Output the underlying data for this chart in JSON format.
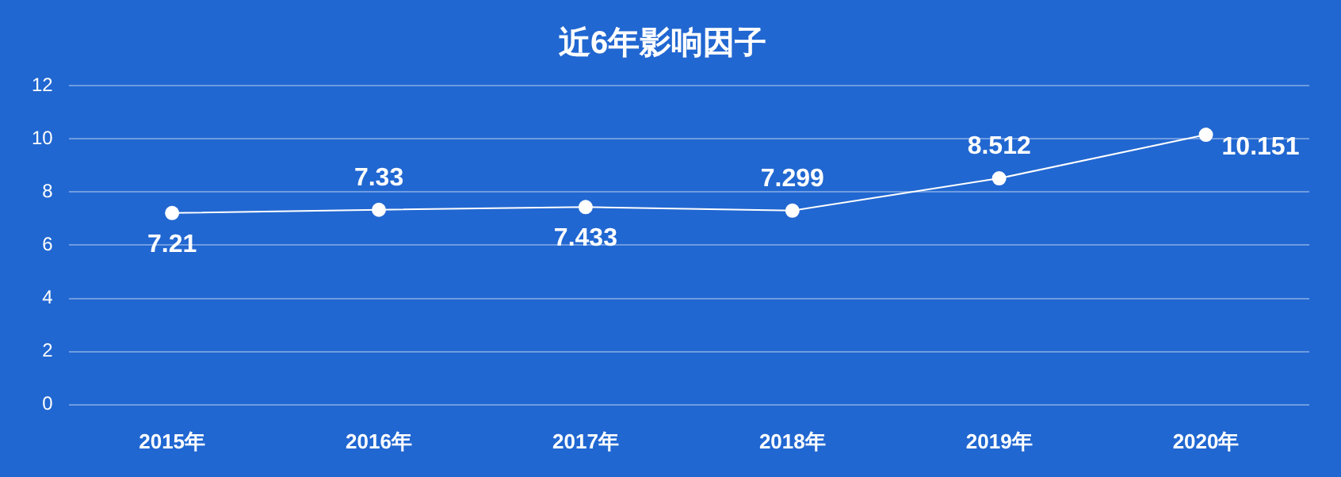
{
  "chart_data": {
    "type": "line",
    "title": "近6年影响因子",
    "categories": [
      "2015年",
      "2016年",
      "2017年",
      "2018年",
      "2019年",
      "2020年"
    ],
    "series": [
      {
        "color": "#ffffff",
        "values": [
          7.21,
          7.33,
          7.433,
          7.299,
          8.512,
          10.151
        ]
      }
    ],
    "ylim": [
      0,
      12
    ],
    "yticks": [
      0,
      2,
      4,
      6,
      8,
      10,
      12
    ],
    "grid": "y",
    "legend": false,
    "marker": "circle",
    "line_style": "solid",
    "data_labels": true
  }
}
